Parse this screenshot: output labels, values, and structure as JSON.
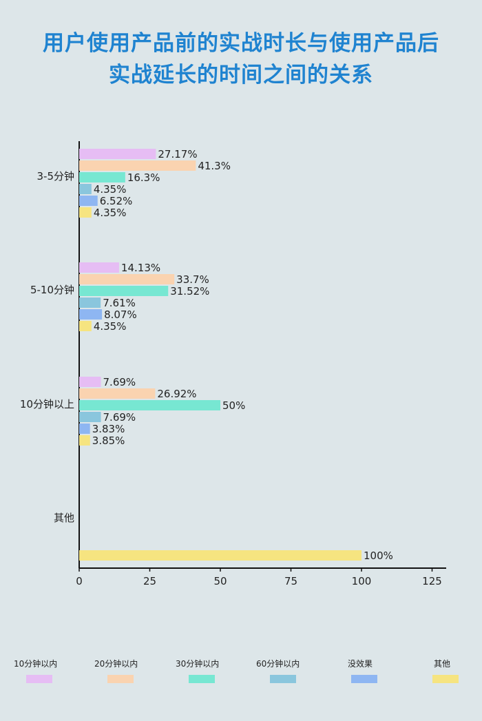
{
  "title": {
    "line1": "用户使用产品前的实战时长与使用产品后",
    "line2": "实战延长的时间之间的关系"
  },
  "chart_data": {
    "type": "bar",
    "orientation": "horizontal",
    "categories": [
      "3-5分钟",
      "5-10分钟",
      "10分钟以上",
      "其他"
    ],
    "series": [
      {
        "name": "10分钟以内",
        "color": "#e6bdf4",
        "values": [
          27.17,
          14.13,
          7.69,
          null
        ],
        "labels": [
          "27.17%",
          "14.13%",
          "7.69%",
          ""
        ]
      },
      {
        "name": "20分钟以内",
        "color": "#fad3b0",
        "values": [
          41.3,
          33.7,
          26.92,
          null
        ],
        "labels": [
          "41.3%",
          "33.7%",
          "26.92%",
          ""
        ]
      },
      {
        "name": "30分钟以内",
        "color": "#77e7d2",
        "values": [
          16.3,
          31.52,
          50,
          null
        ],
        "labels": [
          "16.3%",
          "31.52%",
          "50%",
          ""
        ]
      },
      {
        "name": "60分钟以内",
        "color": "#8ac6dd",
        "values": [
          4.35,
          7.61,
          7.69,
          null
        ],
        "labels": [
          "4.35%",
          "7.61%",
          "7.69%",
          ""
        ]
      },
      {
        "name": "没效果",
        "color": "#8eb6f2",
        "values": [
          6.52,
          8.07,
          3.83,
          null
        ],
        "labels": [
          "6.52%",
          "8.07%",
          "3.83%",
          ""
        ]
      },
      {
        "name": "其他",
        "color": "#f6e480",
        "values": [
          4.35,
          4.35,
          3.85,
          100
        ],
        "labels": [
          "4.35%",
          "4.35%",
          "3.85%",
          "100%"
        ]
      }
    ],
    "x_ticks": [
      0,
      25,
      50,
      75,
      100,
      125
    ],
    "xlim": [
      0,
      130
    ],
    "grid": false,
    "legend_position": "bottom"
  }
}
